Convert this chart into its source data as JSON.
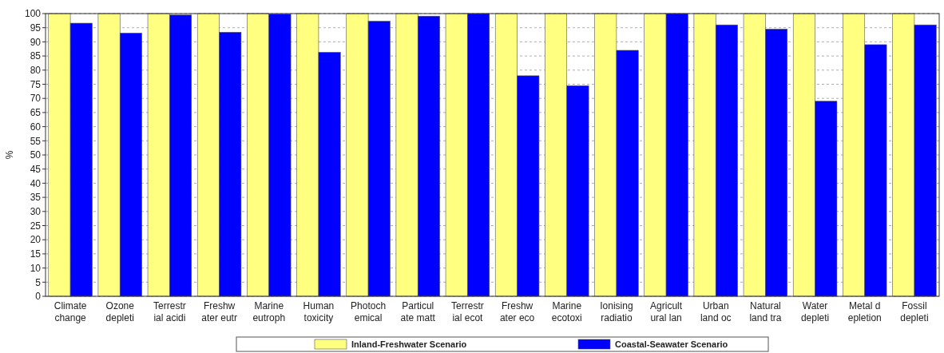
{
  "chart_data": {
    "type": "bar",
    "ylabel": "%",
    "categories": [
      "Climate\nchange",
      "Ozone\ndepleti",
      "Terrestr\nial acidi",
      "Freshw\nater eutr",
      "Marine\neutroph",
      "Human\ntoxicity",
      "Photoch\nemical",
      "Particul\nate matt",
      "Terrestr\nial ecot",
      "Freshw\nater eco",
      "Marine\necotoxi",
      "Ionising\nradiatio",
      "Agricult\nural lan",
      "Urban\nland oc",
      "Natural\nland tra",
      "Water\ndepleti",
      "Metal d\nepletion",
      "Fossil\ndepleti"
    ],
    "series": [
      {
        "name": "Inland-Freshwater Scenario",
        "color": "#ffff80",
        "values": [
          100,
          100,
          100,
          100,
          100,
          100,
          100,
          100,
          100,
          100,
          100,
          100,
          100,
          100,
          100,
          100,
          100,
          100
        ]
      },
      {
        "name": "Coastal-Seawater Scenario",
        "color": "#0000ff",
        "values": [
          96.6,
          93.1,
          99.5,
          93.4,
          99.8,
          86.3,
          97.3,
          99.1,
          100,
          78,
          74.5,
          87,
          100,
          96,
          94.5,
          69,
          89,
          96
        ]
      }
    ],
    "ylim": [
      0,
      100
    ],
    "yticks": [
      0,
      5,
      10,
      15,
      20,
      25,
      30,
      35,
      40,
      45,
      50,
      55,
      60,
      65,
      70,
      75,
      80,
      85,
      90,
      95,
      100
    ],
    "grid": "y",
    "legend": "bottom"
  }
}
